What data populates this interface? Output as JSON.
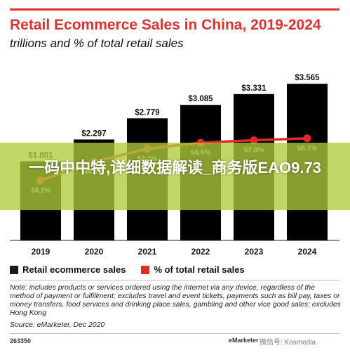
{
  "header": {
    "title": "Retail Ecommerce Sales in China, 2019-2024",
    "subtitle": "trillions and % of total retail sales"
  },
  "chart_data": {
    "type": "bar",
    "categories": [
      "2019",
      "2020",
      "2021",
      "2022",
      "2023",
      "2024"
    ],
    "series": [
      {
        "name": "Retail ecommerce sales",
        "type": "bar",
        "values": [
          1.801,
          2.297,
          2.779,
          3.085,
          3.331,
          3.565
        ],
        "labels": [
          "$1.801",
          "$2.297",
          "$2.779",
          "$3.085",
          "$3.331",
          "$3.565"
        ],
        "color": "#000000"
      },
      {
        "name": "% of total retail sales",
        "type": "line",
        "values": [
          34.1,
          44.8,
          52.1,
          55.6,
          57.0,
          58.1
        ],
        "labels": [
          "34.1%",
          "44.8%",
          "52.1%",
          "55.6%",
          "57.0%",
          "58.1%"
        ],
        "color": "#e02b2b"
      }
    ],
    "bar_ylim": [
      0,
      4.0
    ],
    "line_ylim": [
      0,
      100
    ],
    "grid": false,
    "legend": "bottom"
  },
  "legend": {
    "items": [
      {
        "label": "Retail ecommerce sales",
        "color": "#1a1a1a"
      },
      {
        "label": "% of total retail sales",
        "color": "#e02b2b"
      }
    ]
  },
  "notes": {
    "note": "Note: includes products or services ordered using the internet via any device, regardless of the method of payment or fulfillment; excludes travel and event tickets, payments such as bill pay, taxes or money transfers, food services and drinking place sales, gambling and other vice good sales; excludes Hong Kong",
    "source": "Source: eMarketer, Dec 2020"
  },
  "footer": {
    "id": "263350",
    "brand": "eMarketer",
    "watermark": "微信号: Kosmedia"
  },
  "overlay": {
    "text": "一码中中特,详细数据解读_商务版EAO9.73"
  },
  "colors": {
    "accent": "#d9322f",
    "bar": "#000000",
    "line": "#e02b2b",
    "banner": "#b0cc3a"
  }
}
